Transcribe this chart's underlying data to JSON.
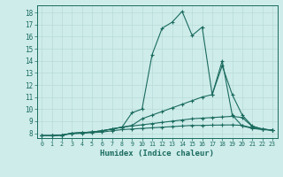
{
  "xlabel": "Humidex (Indice chaleur)",
  "bg_color": "#ceecea",
  "grid_color": "#b8dbd8",
  "line_color": "#1a6b5e",
  "spine_color": "#1a6b5e",
  "xlim": [
    -0.5,
    23.5
  ],
  "ylim": [
    7.6,
    18.6
  ],
  "xticks": [
    0,
    1,
    2,
    3,
    4,
    5,
    6,
    7,
    8,
    9,
    10,
    11,
    12,
    13,
    14,
    15,
    16,
    17,
    18,
    19,
    20,
    21,
    22,
    23
  ],
  "yticks": [
    8,
    9,
    10,
    11,
    12,
    13,
    14,
    15,
    16,
    17,
    18
  ],
  "lines": [
    {
      "x": [
        0,
        1,
        2,
        3,
        4,
        5,
        6,
        7,
        8,
        9,
        10,
        11,
        12,
        13,
        14,
        15,
        16,
        17,
        18,
        19,
        20,
        21,
        22,
        23
      ],
      "y": [
        7.8,
        7.8,
        7.85,
        8.0,
        8.05,
        8.1,
        8.2,
        8.35,
        8.5,
        9.7,
        10.0,
        14.5,
        16.7,
        17.2,
        18.1,
        16.1,
        16.8,
        11.2,
        14.0,
        9.5,
        8.6,
        8.4,
        8.3,
        8.25
      ]
    },
    {
      "x": [
        0,
        1,
        2,
        3,
        4,
        5,
        6,
        7,
        8,
        9,
        10,
        11,
        12,
        13,
        14,
        15,
        16,
        17,
        18,
        19,
        20,
        21,
        22,
        23
      ],
      "y": [
        7.8,
        7.8,
        7.85,
        8.0,
        8.05,
        8.1,
        8.2,
        8.35,
        8.5,
        8.65,
        9.2,
        9.5,
        9.8,
        10.1,
        10.4,
        10.7,
        11.0,
        11.2,
        13.6,
        11.2,
        9.5,
        8.6,
        8.35,
        8.25
      ]
    },
    {
      "x": [
        0,
        1,
        2,
        3,
        4,
        5,
        6,
        7,
        8,
        9,
        10,
        11,
        12,
        13,
        14,
        15,
        16,
        17,
        18,
        19,
        20,
        21,
        22,
        23
      ],
      "y": [
        7.8,
        7.8,
        7.85,
        8.0,
        8.05,
        8.1,
        8.2,
        8.35,
        8.5,
        8.6,
        8.7,
        8.8,
        8.9,
        9.0,
        9.1,
        9.2,
        9.25,
        9.3,
        9.35,
        9.4,
        9.3,
        8.55,
        8.35,
        8.25
      ]
    },
    {
      "x": [
        0,
        1,
        2,
        3,
        4,
        5,
        6,
        7,
        8,
        9,
        10,
        11,
        12,
        13,
        14,
        15,
        16,
        17,
        18,
        19,
        20,
        21,
        22,
        23
      ],
      "y": [
        7.8,
        7.8,
        7.85,
        7.95,
        8.0,
        8.05,
        8.1,
        8.2,
        8.3,
        8.35,
        8.4,
        8.45,
        8.5,
        8.55,
        8.6,
        8.65,
        8.65,
        8.67,
        8.68,
        8.69,
        8.65,
        8.45,
        8.35,
        8.25
      ]
    }
  ]
}
